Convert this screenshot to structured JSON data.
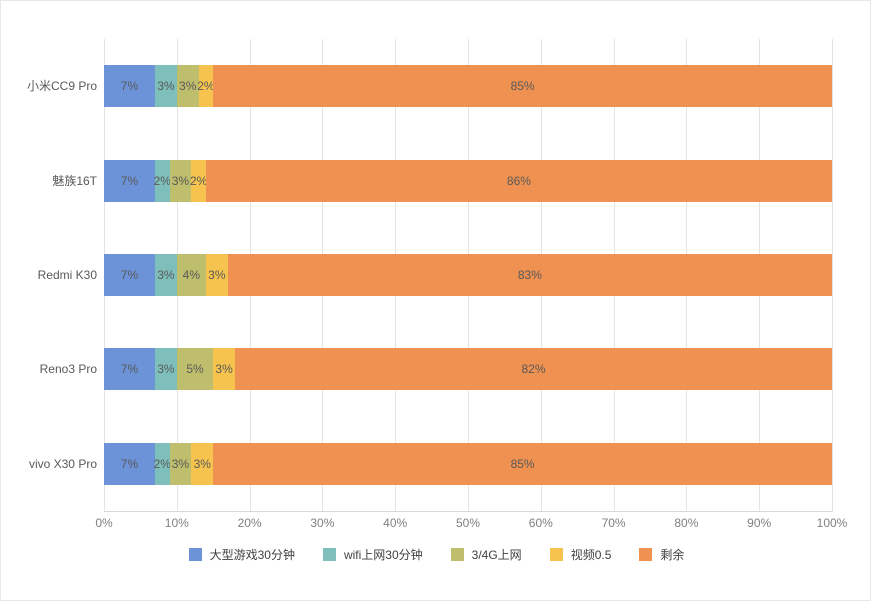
{
  "chart_data": {
    "type": "bar",
    "orientation": "horizontal",
    "stacked": true,
    "title": "",
    "xlabel": "",
    "ylabel": "",
    "xlim": [
      0,
      100
    ],
    "grid": true,
    "legend_position": "bottom",
    "value_label_suffix": "%",
    "categories": [
      "小米CC9 Pro",
      "魅族16T",
      "Redmi K30",
      "Reno3 Pro",
      "vivo X30 Pro"
    ],
    "series": [
      {
        "name": "大型游戏30分钟",
        "color": "#6C93D8",
        "values": [
          7,
          7,
          7,
          7,
          7
        ]
      },
      {
        "name": "wifi上网30分钟",
        "color": "#7FBFBB",
        "values": [
          3,
          2,
          3,
          3,
          2
        ]
      },
      {
        "name": "3/4G上网",
        "color": "#BFBE6C",
        "values": [
          3,
          3,
          4,
          5,
          3
        ]
      },
      {
        "name": "视频0.5",
        "color": "#F6C44E",
        "values": [
          2,
          2,
          3,
          3,
          3
        ]
      },
      {
        "name": "剩余",
        "color": "#EF9150",
        "values": [
          85,
          86,
          83,
          82,
          85
        ]
      }
    ],
    "x_ticks": [
      "0%",
      "10%",
      "20%",
      "30%",
      "40%",
      "50%",
      "60%",
      "70%",
      "80%",
      "90%",
      "100%"
    ]
  },
  "layout_colors": {
    "background": "#ffffff",
    "border": "#e7e7e7",
    "gridline": "#e4e4e4",
    "axis_line": "#d9d9d9",
    "category_label": "#595959",
    "value_label": "#595959",
    "tick_label": "#7f7f7f",
    "legend_label": "#404040"
  }
}
